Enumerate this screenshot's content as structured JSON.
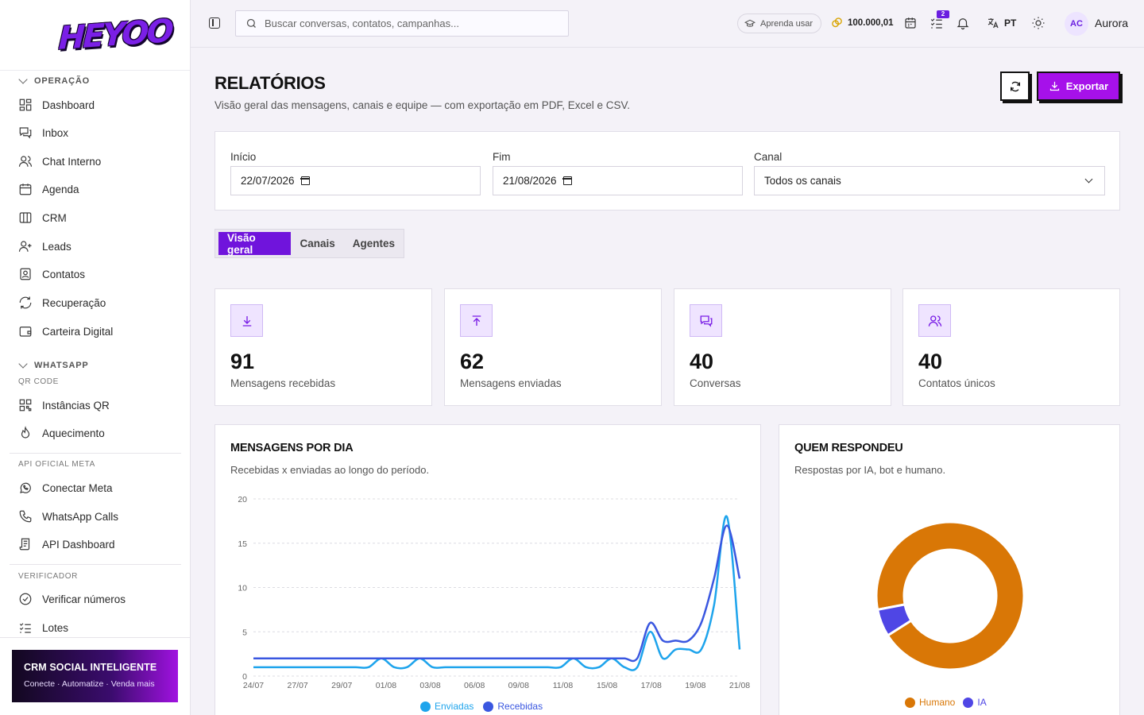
{
  "brand": {
    "logo_text": "HEYOO"
  },
  "sidebar": {
    "sections": {
      "operacao": "OPERAÇÃO",
      "whatsapp": "WHATSAPP",
      "qr_code": "QR CODE",
      "api_meta": "API OFICIAL META",
      "verificador": "VERIFICADOR"
    },
    "items": {
      "dashboard": "Dashboard",
      "inbox": "Inbox",
      "chat_interno": "Chat Interno",
      "agenda": "Agenda",
      "crm": "CRM",
      "leads": "Leads",
      "contatos": "Contatos",
      "recuperacao": "Recuperação",
      "carteira": "Carteira Digital",
      "instancias": "Instâncias QR",
      "aquecimento": "Aquecimento",
      "conectar_meta": "Conectar Meta",
      "calls": "WhatsApp Calls",
      "api_dashboard": "API Dashboard",
      "verificar": "Verificar números",
      "lotes": "Lotes"
    },
    "promo": {
      "title": "CRM SOCIAL INTELIGENTE",
      "subtitle": "Conecte · Automatize · Venda mais"
    }
  },
  "header": {
    "search_placeholder": "Buscar conversas, contatos, campanhas...",
    "learn_label": "Aprenda usar",
    "coins": "100.000,01",
    "tasks_badge": "2",
    "language": "PT",
    "avatar_initials": "AC",
    "user_name": "Aurora"
  },
  "page": {
    "title": "RELATÓRIOS",
    "subtitle": "Visão geral das mensagens, canais e equipe — com exportação em PDF, Excel e CSV.",
    "export_label": "Exportar"
  },
  "filters": {
    "start_label": "Início",
    "start_value": "22/07/2026",
    "end_label": "Fim",
    "end_value": "21/08/2026",
    "channel_label": "Canal",
    "channel_value": "Todos os canais"
  },
  "tabs": [
    "Visão geral",
    "Canais",
    "Agentes"
  ],
  "kpis": [
    {
      "value": "91",
      "label": "Mensagens recebidas",
      "icon": "download-icon"
    },
    {
      "value": "62",
      "label": "Mensagens enviadas",
      "icon": "upload-icon"
    },
    {
      "value": "40",
      "label": "Conversas",
      "icon": "chat-icon"
    },
    {
      "value": "40",
      "label": "Contatos únicos",
      "icon": "users-icon"
    }
  ],
  "charts": {
    "messages": {
      "title": "MENSAGENS POR DIA",
      "subtitle": "Recebidas x enviadas ao longo do período."
    },
    "responders": {
      "title": "QUEM RESPONDEU",
      "subtitle": "Respostas por IA, bot e humano."
    }
  },
  "chart_data": [
    {
      "type": "line",
      "title": "MENSAGENS POR DIA",
      "x_tick_labels": [
        "24/07",
        "27/07",
        "29/07",
        "01/08",
        "03/08",
        "06/08",
        "09/08",
        "11/08",
        "15/08",
        "17/08",
        "19/08",
        "21/08"
      ],
      "ylim": [
        0,
        20
      ],
      "y_ticks": [
        0,
        5,
        10,
        15,
        20
      ],
      "grid": true,
      "legend_position": "bottom",
      "colors": {
        "Enviadas": "#1ea4ec",
        "Recebidas": "#3a57e0"
      },
      "series": [
        {
          "name": "Enviadas",
          "values": [
            1,
            1,
            1,
            1,
            1,
            1,
            1,
            1,
            1,
            1,
            2,
            1,
            1,
            2,
            1,
            1,
            1,
            1,
            1,
            1,
            1,
            1,
            1,
            1,
            1,
            2,
            1,
            1,
            2,
            1,
            1,
            5,
            2,
            3,
            3,
            3,
            8,
            18,
            3
          ]
        },
        {
          "name": "Recebidas",
          "values": [
            2,
            2,
            2,
            2,
            2,
            2,
            2,
            2,
            2,
            2,
            2,
            2,
            2,
            2,
            2,
            2,
            2,
            2,
            2,
            2,
            2,
            2,
            2,
            2,
            2,
            2,
            2,
            2,
            2,
            2,
            2,
            6,
            4,
            4,
            4,
            6,
            11,
            17,
            11
          ]
        }
      ]
    },
    {
      "type": "pie",
      "title": "QUEM RESPONDEU",
      "categories": [
        "Humano",
        "IA"
      ],
      "values": [
        94,
        6
      ],
      "colors": [
        "#d97706",
        "#4f46e5"
      ],
      "legend_position": "bottom"
    }
  ]
}
